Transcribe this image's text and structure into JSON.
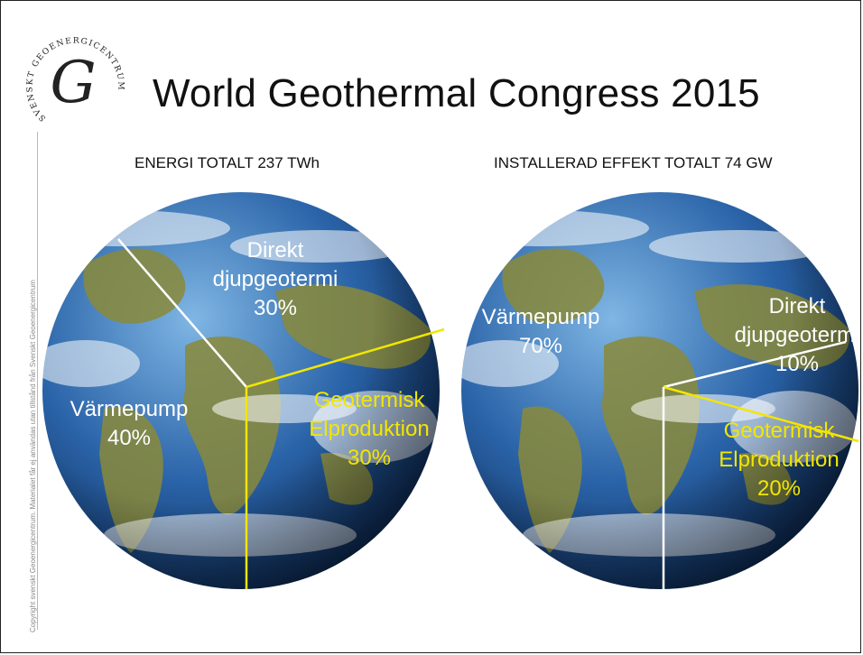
{
  "title": "World Geothermal Congress 2015",
  "logo": {
    "name": "SVENSKT GEOENERGICENTRUM",
    "monogram": "G"
  },
  "copyright": "Copyright svenskt Geoenergicentrum. Materialet får ej användas utan tillstånd från Svenskt Geoenergicentrum",
  "colors": {
    "yellow": "#f2e600",
    "white": "#ffffff",
    "ocean": "#2a63a8",
    "land": "#8a8a3a"
  },
  "chart_data": [
    {
      "type": "pie",
      "title": "ENERGI TOTALT 237 TWh",
      "slices": [
        {
          "lines": [
            "Direkt",
            "djupgeotermi",
            "30%"
          ],
          "value": 30,
          "color": "#ffffff"
        },
        {
          "lines": [
            "Geotermisk",
            "Elproduktion",
            "30%"
          ],
          "value": 30,
          "color": "#f2e600"
        },
        {
          "lines": [
            "Värmepump",
            "40%"
          ],
          "value": 40,
          "color": "#ffffff"
        }
      ]
    },
    {
      "type": "pie",
      "title": "INSTALLERAD EFFEKT TOTALT 74 GW",
      "slices": [
        {
          "lines": [
            "Värmepump",
            "70%"
          ],
          "value": 70,
          "color": "#ffffff"
        },
        {
          "lines": [
            "Direkt",
            "djupgeotermi",
            "10%"
          ],
          "value": 10,
          "color": "#ffffff"
        },
        {
          "lines": [
            "Geotermisk",
            "Elproduktion",
            "20%"
          ],
          "value": 20,
          "color": "#f2e600"
        }
      ]
    }
  ]
}
